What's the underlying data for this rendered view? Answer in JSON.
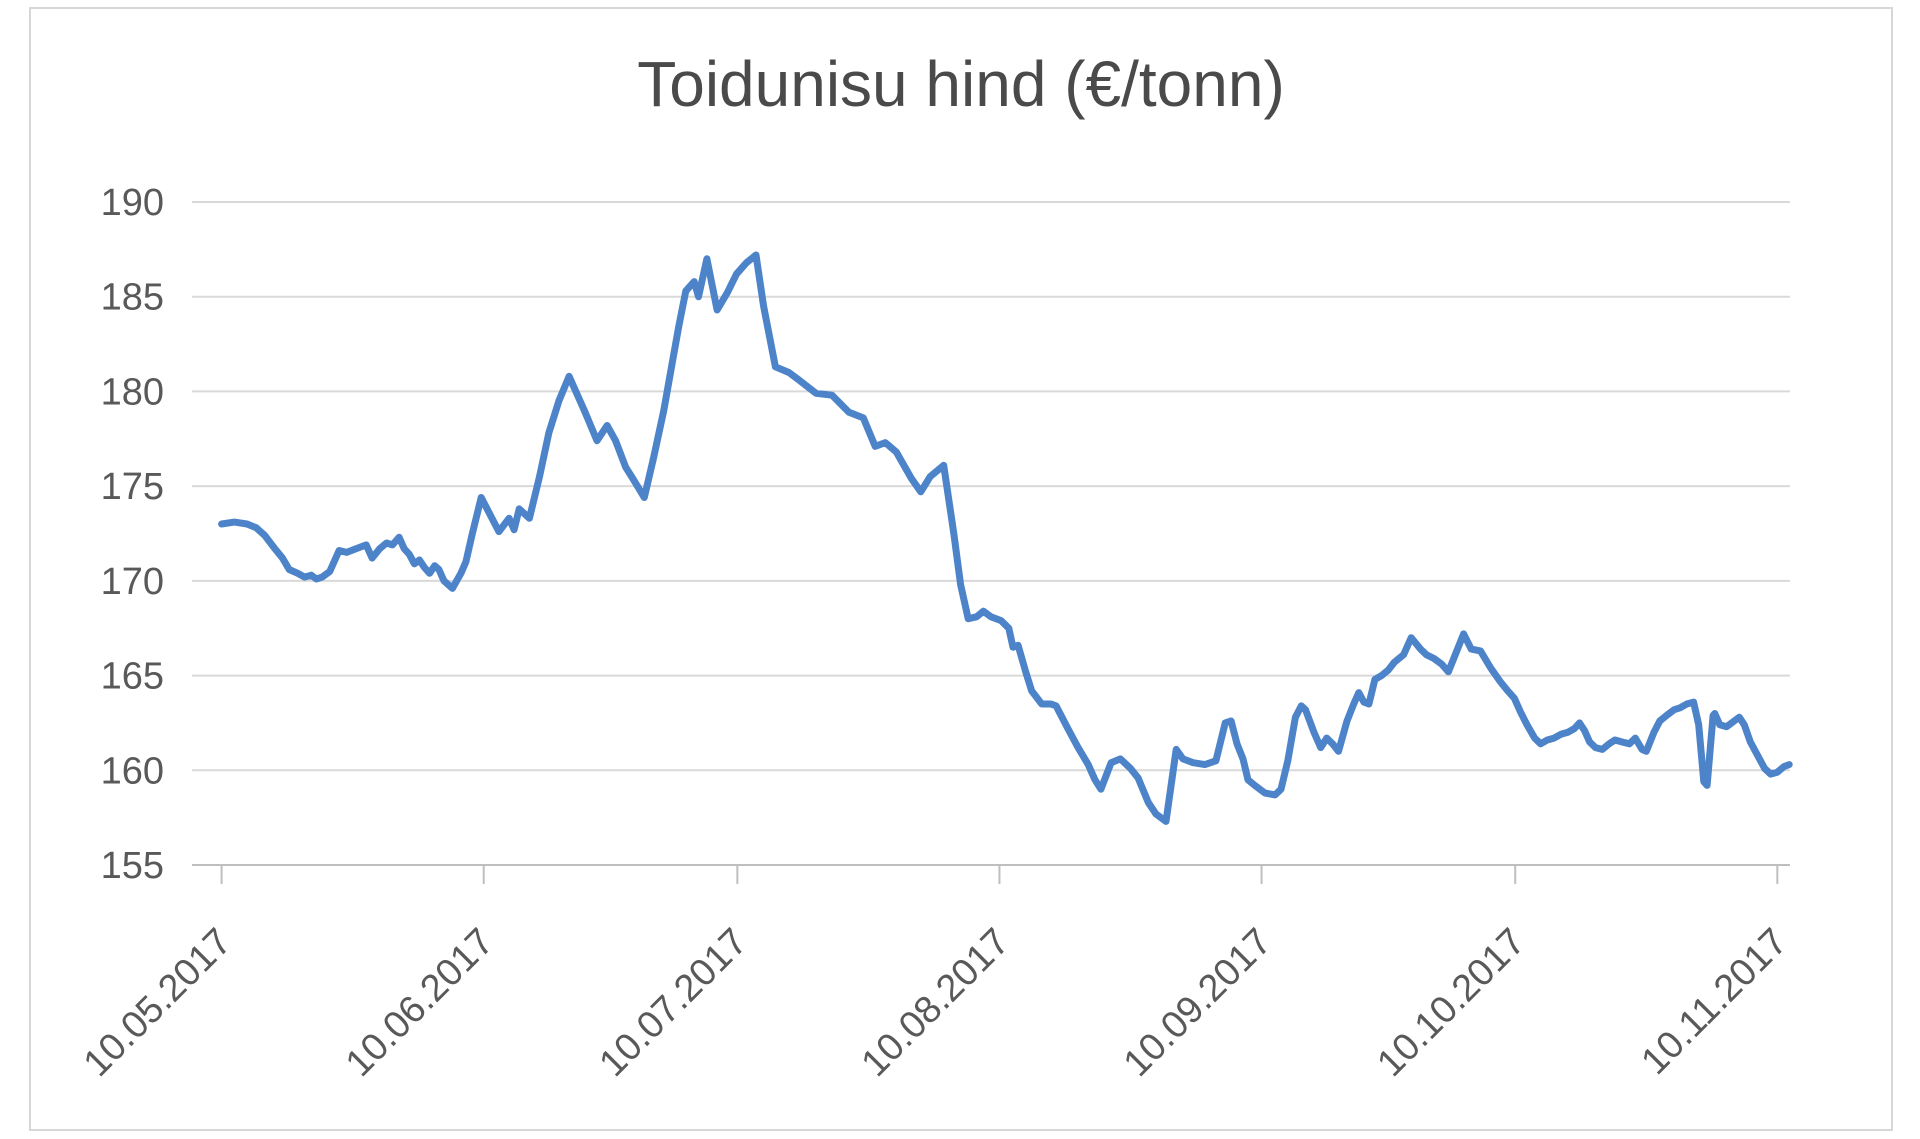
{
  "chart_data": {
    "type": "line",
    "title": "Toidunisu hind (€/tonn)",
    "xlabel": "",
    "ylabel": "",
    "legend": "none",
    "grid": "horizontal",
    "x_axis": {
      "tick_labels": [
        "10.05.2017",
        "10.06.2017",
        "10.07.2017",
        "10.08.2017",
        "10.09.2017",
        "10.10.2017",
        "10.11.2017"
      ],
      "tick_day_offsets": [
        0,
        31,
        61,
        92,
        123,
        153,
        184
      ],
      "range_days": [
        -3.5,
        185.5
      ],
      "label_rotation_deg": 45
    },
    "y_axis": {
      "ticks": [
        155,
        160,
        165,
        170,
        175,
        180,
        185,
        190
      ],
      "range": [
        155,
        190
      ]
    },
    "series": [
      {
        "color": "#4d84c9",
        "points": [
          [
            0,
            173.0
          ],
          [
            1.5,
            173.1
          ],
          [
            3,
            173.0
          ],
          [
            4.1,
            172.8
          ],
          [
            5.1,
            172.4
          ],
          [
            6.3,
            171.7
          ],
          [
            7.2,
            171.2
          ],
          [
            8,
            170.6
          ],
          [
            9,
            170.4
          ],
          [
            9.8,
            170.2
          ],
          [
            10.6,
            170.3
          ],
          [
            11.2,
            170.1
          ],
          [
            11.9,
            170.2
          ],
          [
            12.8,
            170.5
          ],
          [
            13.9,
            171.6
          ],
          [
            14.8,
            171.5
          ],
          [
            15.9,
            171.7
          ],
          [
            17.1,
            171.9
          ],
          [
            17.8,
            171.2
          ],
          [
            18.7,
            171.7
          ],
          [
            19.5,
            172.0
          ],
          [
            20.2,
            171.9
          ],
          [
            21,
            172.3
          ],
          [
            21.6,
            171.7
          ],
          [
            22.2,
            171.4
          ],
          [
            22.8,
            170.9
          ],
          [
            23.4,
            171.1
          ],
          [
            24,
            170.7
          ],
          [
            24.6,
            170.4
          ],
          [
            25.2,
            170.8
          ],
          [
            25.7,
            170.6
          ],
          [
            26.3,
            170.0
          ],
          [
            27.3,
            169.6
          ],
          [
            28.3,
            170.4
          ],
          [
            28.9,
            171.0
          ],
          [
            29.6,
            172.4
          ],
          [
            30.7,
            174.4
          ],
          [
            31.4,
            173.8
          ],
          [
            32.8,
            172.6
          ],
          [
            34,
            173.3
          ],
          [
            34.6,
            172.7
          ],
          [
            35.2,
            173.8
          ],
          [
            36.4,
            173.3
          ],
          [
            37.6,
            175.5
          ],
          [
            38.7,
            177.8
          ],
          [
            39.9,
            179.5
          ],
          [
            41.1,
            180.8
          ],
          [
            42.9,
            179.0
          ],
          [
            44.4,
            177.4
          ],
          [
            45.6,
            178.2
          ],
          [
            46.6,
            177.4
          ],
          [
            47.8,
            176.0
          ],
          [
            48.5,
            175.5
          ],
          [
            50,
            174.4
          ],
          [
            51.1,
            176.5
          ],
          [
            52.3,
            179.0
          ],
          [
            53.3,
            181.5
          ],
          [
            54.1,
            183.5
          ],
          [
            54.9,
            185.3
          ],
          [
            55.9,
            185.8
          ],
          [
            56.4,
            185.0
          ],
          [
            57.4,
            187.0
          ],
          [
            58.6,
            184.3
          ],
          [
            59.8,
            185.2
          ],
          [
            60.9,
            186.2
          ],
          [
            62.1,
            186.8
          ],
          [
            63.2,
            187.2
          ],
          [
            64.1,
            184.5
          ],
          [
            65.5,
            181.3
          ],
          [
            67.1,
            181.0
          ],
          [
            68.3,
            180.6
          ],
          [
            70.3,
            179.9
          ],
          [
            72.2,
            179.8
          ],
          [
            74.2,
            178.9
          ],
          [
            75.9,
            178.6
          ],
          [
            77.3,
            177.1
          ],
          [
            78.5,
            177.3
          ],
          [
            79.8,
            176.8
          ],
          [
            81.6,
            175.4
          ],
          [
            82.7,
            174.7
          ],
          [
            83.8,
            175.5
          ],
          [
            85.4,
            176.1
          ],
          [
            86.6,
            172.5
          ],
          [
            87.4,
            169.8
          ],
          [
            88.3,
            168.0
          ],
          [
            89.3,
            168.1
          ],
          [
            90.1,
            168.4
          ],
          [
            91,
            168.1
          ],
          [
            92.2,
            167.9
          ],
          [
            93.1,
            167.5
          ],
          [
            93.6,
            166.5
          ],
          [
            94.2,
            166.6
          ],
          [
            95.1,
            165.2
          ],
          [
            95.8,
            164.2
          ],
          [
            97,
            163.5
          ],
          [
            98.1,
            163.5
          ],
          [
            98.7,
            163.4
          ],
          [
            100.1,
            162.2
          ],
          [
            101.3,
            161.2
          ],
          [
            102.5,
            160.3
          ],
          [
            103.3,
            159.5
          ],
          [
            104,
            159.0
          ],
          [
            105.2,
            160.4
          ],
          [
            106.3,
            160.6
          ],
          [
            107.5,
            160.1
          ],
          [
            108.4,
            159.6
          ],
          [
            109.6,
            158.3
          ],
          [
            110.5,
            157.7
          ],
          [
            111.7,
            157.3
          ],
          [
            112.9,
            161.1
          ],
          [
            113.7,
            160.6
          ],
          [
            114.9,
            160.4
          ],
          [
            116.3,
            160.3
          ],
          [
            117.6,
            160.5
          ],
          [
            118.7,
            162.5
          ],
          [
            119.4,
            162.6
          ],
          [
            120.1,
            161.4
          ],
          [
            120.8,
            160.6
          ],
          [
            121.4,
            159.5
          ],
          [
            122.2,
            159.2
          ],
          [
            123.4,
            158.8
          ],
          [
            124.6,
            158.7
          ],
          [
            125.3,
            159.0
          ],
          [
            126.1,
            160.5
          ],
          [
            127,
            162.8
          ],
          [
            127.7,
            163.4
          ],
          [
            128.2,
            163.2
          ],
          [
            129.2,
            162.0
          ],
          [
            130,
            161.2
          ],
          [
            130.7,
            161.7
          ],
          [
            131.4,
            161.4
          ],
          [
            132.1,
            161.0
          ],
          [
            133.1,
            162.6
          ],
          [
            133.9,
            163.5
          ],
          [
            134.5,
            164.1
          ],
          [
            135.1,
            163.6
          ],
          [
            135.7,
            163.5
          ],
          [
            136.4,
            164.8
          ],
          [
            137.2,
            165.0
          ],
          [
            138,
            165.3
          ],
          [
            138.7,
            165.7
          ],
          [
            139.8,
            166.1
          ],
          [
            140.7,
            167.0
          ],
          [
            141.8,
            166.4
          ],
          [
            142.5,
            166.1
          ],
          [
            143.4,
            165.9
          ],
          [
            144.3,
            165.6
          ],
          [
            145.1,
            165.2
          ],
          [
            146.9,
            167.2
          ],
          [
            147.8,
            166.4
          ],
          [
            148.9,
            166.3
          ],
          [
            150.1,
            165.4
          ],
          [
            151.2,
            164.7
          ],
          [
            152.1,
            164.2
          ],
          [
            152.9,
            163.8
          ],
          [
            153.6,
            163.1
          ],
          [
            154.4,
            162.4
          ],
          [
            155.3,
            161.7
          ],
          [
            156,
            161.4
          ],
          [
            156.8,
            161.6
          ],
          [
            157.6,
            161.7
          ],
          [
            158.4,
            161.9
          ],
          [
            159.2,
            162.0
          ],
          [
            160,
            162.2
          ],
          [
            160.6,
            162.5
          ],
          [
            161.2,
            162.1
          ],
          [
            161.8,
            161.5
          ],
          [
            162.5,
            161.2
          ],
          [
            163.3,
            161.1
          ],
          [
            164.1,
            161.4
          ],
          [
            164.8,
            161.6
          ],
          [
            165.6,
            161.5
          ],
          [
            166.5,
            161.4
          ],
          [
            167.2,
            161.7
          ],
          [
            168,
            161.1
          ],
          [
            168.5,
            161.0
          ],
          [
            169.4,
            162.0
          ],
          [
            170.1,
            162.6
          ],
          [
            170.9,
            162.9
          ],
          [
            171.8,
            163.2
          ],
          [
            172.5,
            163.3
          ],
          [
            173.3,
            163.5
          ],
          [
            174.1,
            163.6
          ],
          [
            174.7,
            162.4
          ],
          [
            175.3,
            159.4
          ],
          [
            175.7,
            159.2
          ],
          [
            176.4,
            162.9
          ],
          [
            176.6,
            163.0
          ],
          [
            177.2,
            162.4
          ],
          [
            178,
            162.3
          ],
          [
            178.9,
            162.6
          ],
          [
            179.5,
            162.8
          ],
          [
            180.1,
            162.4
          ],
          [
            180.8,
            161.5
          ],
          [
            182.5,
            160.1
          ],
          [
            183.2,
            159.8
          ],
          [
            184,
            159.9
          ],
          [
            184.8,
            160.2
          ],
          [
            185.4,
            160.3
          ]
        ]
      }
    ]
  },
  "styles": {
    "background": "#ffffff",
    "frame_border_color": "#d7d7d7",
    "grid_color": "#d9d9d9",
    "axis_color": "#bfbfbf",
    "tick_label_color": "#595959",
    "title_color": "#4a4a4a",
    "line_color": "#4d84c9"
  }
}
